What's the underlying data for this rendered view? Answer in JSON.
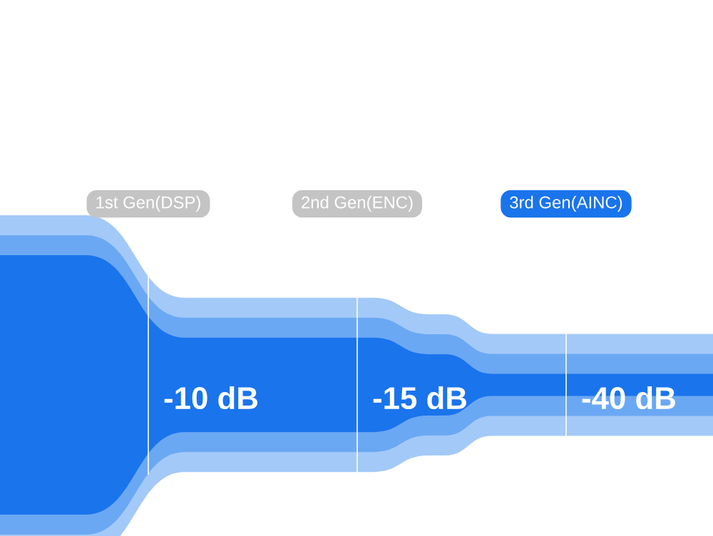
{
  "chart_data": {
    "type": "other",
    "categories": [
      "1st Gen(DSP)",
      "2nd Gen(ENC)",
      "3rd Gen(AINC)"
    ],
    "values": [
      -10,
      -15,
      -40
    ],
    "value_labels": [
      "-10 dB",
      "-15 dB",
      "-40 dB"
    ]
  }
}
